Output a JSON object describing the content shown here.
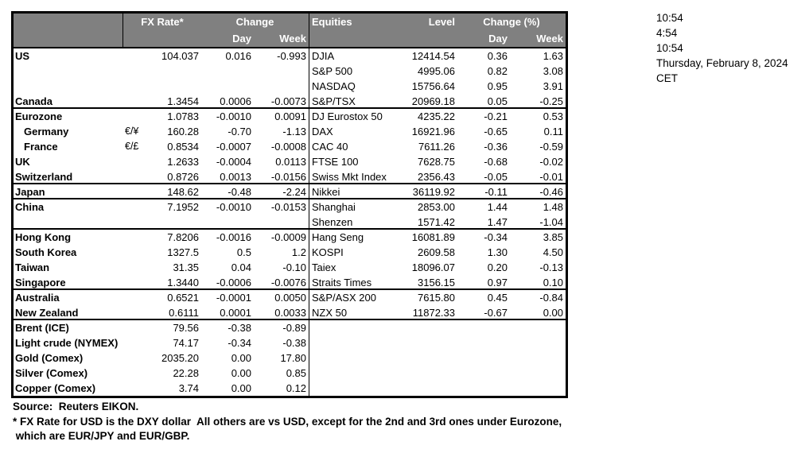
{
  "colors": {
    "header_bg": "#808080",
    "header_text": "#ffffff",
    "border": "#000000"
  },
  "header": {
    "fx_rate": "FX Rate*",
    "change": "Change",
    "day": "Day",
    "week": "Week",
    "equities": "Equities",
    "level": "Level",
    "change_pct": "Change (%)"
  },
  "rows": [
    {
      "country": "US",
      "pair": "",
      "fx_rate": "104.037",
      "fx_day": "0.016",
      "fx_week": "-0.993",
      "eq_name": "DJIA",
      "eq_level": "12414.54",
      "eq_day": "0.36",
      "eq_week": "1.63",
      "indent": false,
      "group_end": false
    },
    {
      "country": "",
      "pair": "",
      "fx_rate": "",
      "fx_day": "",
      "fx_week": "",
      "eq_name": "S&P 500",
      "eq_level": "4995.06",
      "eq_day": "0.82",
      "eq_week": "3.08",
      "indent": false,
      "group_end": false
    },
    {
      "country": "",
      "pair": "",
      "fx_rate": "",
      "fx_day": "",
      "fx_week": "",
      "eq_name": "NASDAQ",
      "eq_level": "15756.64",
      "eq_day": "0.95",
      "eq_week": "3.91",
      "indent": false,
      "group_end": false
    },
    {
      "country": "Canada",
      "pair": "",
      "fx_rate": "1.3454",
      "fx_day": "0.0006",
      "fx_week": "-0.0073",
      "eq_name": "S&P/TSX",
      "eq_level": "20969.18",
      "eq_day": "0.05",
      "eq_week": "-0.25",
      "indent": false,
      "group_end": true
    },
    {
      "country": "Eurozone",
      "pair": "",
      "fx_rate": "1.0783",
      "fx_day": "-0.0010",
      "fx_week": "0.0091",
      "eq_name": "DJ Eurostox 50",
      "eq_level": "4235.22",
      "eq_day": "-0.21",
      "eq_week": "0.53",
      "indent": false,
      "group_end": false
    },
    {
      "country": "Germany",
      "pair": "€/¥",
      "fx_rate": "160.28",
      "fx_day": "-0.70",
      "fx_week": "-1.13",
      "eq_name": "DAX",
      "eq_level": "16921.96",
      "eq_day": "-0.65",
      "eq_week": "0.11",
      "indent": true,
      "group_end": false
    },
    {
      "country": "France",
      "pair": "€/£",
      "fx_rate": "0.8534",
      "fx_day": "-0.0007",
      "fx_week": "-0.0008",
      "eq_name": "CAC 40",
      "eq_level": "7611.26",
      "eq_day": "-0.36",
      "eq_week": "-0.59",
      "indent": true,
      "group_end": false
    },
    {
      "country": "UK",
      "pair": "",
      "fx_rate": "1.2633",
      "fx_day": "-0.0004",
      "fx_week": "0.0113",
      "eq_name": "FTSE 100",
      "eq_level": "7628.75",
      "eq_day": "-0.68",
      "eq_week": "-0.02",
      "indent": false,
      "group_end": false
    },
    {
      "country": "Switzerland",
      "pair": "",
      "fx_rate": "0.8726",
      "fx_day": "0.0013",
      "fx_week": "-0.0156",
      "eq_name": "Swiss Mkt Index",
      "eq_level": "2356.43",
      "eq_day": "-0.05",
      "eq_week": "-0.01",
      "indent": false,
      "group_end": true
    },
    {
      "country": "Japan",
      "pair": "",
      "fx_rate": "148.62",
      "fx_day": "-0.48",
      "fx_week": "-2.24",
      "eq_name": "Nikkei",
      "eq_level": "36119.92",
      "eq_day": "-0.11",
      "eq_week": "-0.46",
      "indent": false,
      "group_end": true
    },
    {
      "country": "China",
      "pair": "",
      "fx_rate": "7.1952",
      "fx_day": "-0.0010",
      "fx_week": "-0.0153",
      "eq_name": "Shanghai",
      "eq_level": "2853.00",
      "eq_day": "1.44",
      "eq_week": "1.48",
      "indent": false,
      "group_end": false
    },
    {
      "country": "",
      "pair": "",
      "fx_rate": "",
      "fx_day": "",
      "fx_week": "",
      "eq_name": "Shenzen",
      "eq_level": "1571.42",
      "eq_day": "1.47",
      "eq_week": "-1.04",
      "indent": false,
      "group_end": true
    },
    {
      "country": "Hong Kong",
      "pair": "",
      "fx_rate": "7.8206",
      "fx_day": "-0.0016",
      "fx_week": "-0.0009",
      "eq_name": "Hang Seng",
      "eq_level": "16081.89",
      "eq_day": "-0.34",
      "eq_week": "3.85",
      "indent": false,
      "group_end": false
    },
    {
      "country": "South Korea",
      "pair": "",
      "fx_rate": "1327.5",
      "fx_day": "0.5",
      "fx_week": "1.2",
      "eq_name": "KOSPI",
      "eq_level": "2609.58",
      "eq_day": "1.30",
      "eq_week": "4.50",
      "indent": false,
      "group_end": false
    },
    {
      "country": "Taiwan",
      "pair": "",
      "fx_rate": "31.35",
      "fx_day": "0.04",
      "fx_week": "-0.10",
      "eq_name": "Taiex",
      "eq_level": "18096.07",
      "eq_day": "0.20",
      "eq_week": "-0.13",
      "indent": false,
      "group_end": false
    },
    {
      "country": "Singapore",
      "pair": "",
      "fx_rate": "1.3440",
      "fx_day": "-0.0006",
      "fx_week": "-0.0076",
      "eq_name": "Straits Times",
      "eq_level": "3156.15",
      "eq_day": "0.97",
      "eq_week": "0.10",
      "indent": false,
      "group_end": true
    },
    {
      "country": "Australia",
      "pair": "",
      "fx_rate": "0.6521",
      "fx_day": "-0.0001",
      "fx_week": "0.0050",
      "eq_name": "S&P/ASX  200",
      "eq_level": "7615.80",
      "eq_day": "0.45",
      "eq_week": "-0.84",
      "indent": false,
      "group_end": false
    },
    {
      "country": "New Zealand",
      "pair": "",
      "fx_rate": "0.6111",
      "fx_day": "0.0001",
      "fx_week": "0.0033",
      "eq_name": "NZX 50",
      "eq_level": "11872.33",
      "eq_day": "-0.67",
      "eq_week": "0.00",
      "indent": false,
      "group_end": true
    },
    {
      "country": "Brent (ICE)",
      "pair": "",
      "fx_rate": "79.56",
      "fx_day": "-0.38",
      "fx_week": "-0.89",
      "eq_name": "",
      "eq_level": "",
      "eq_day": "",
      "eq_week": "",
      "indent": false,
      "group_end": false
    },
    {
      "country": "Light crude (NYMEX)",
      "pair": "",
      "fx_rate": "74.17",
      "fx_day": "-0.34",
      "fx_week": "-0.38",
      "eq_name": "",
      "eq_level": "",
      "eq_day": "",
      "eq_week": "",
      "indent": false,
      "group_end": false
    },
    {
      "country": "Gold (Comex)",
      "pair": "",
      "fx_rate": "2035.20",
      "fx_day": "0.00",
      "fx_week": "17.80",
      "eq_name": "",
      "eq_level": "",
      "eq_day": "",
      "eq_week": "",
      "indent": false,
      "group_end": false
    },
    {
      "country": "Silver (Comex)",
      "pair": "",
      "fx_rate": "22.28",
      "fx_day": "0.00",
      "fx_week": "0.85",
      "eq_name": "",
      "eq_level": "",
      "eq_day": "",
      "eq_week": "",
      "indent": false,
      "group_end": false
    },
    {
      "country": "Copper (Comex)",
      "pair": "",
      "fx_rate": "3.74",
      "fx_day": "0.00",
      "fx_week": "0.12",
      "eq_name": "",
      "eq_level": "",
      "eq_day": "",
      "eq_week": "",
      "indent": false,
      "group_end": false
    }
  ],
  "footer": {
    "source": "Source:  Reuters EIKON.",
    "note_line1": "* FX Rate for USD is the DXY dollar  All others are vs USD, except for the 2nd and 3rd ones under Eurozone,",
    "note_line2": " which are EUR/JPY and EUR/GBP."
  },
  "clock": {
    "lines": [
      "10:54",
      "4:54",
      "10:54",
      "Thursday, February 8, 2024",
      "CET"
    ]
  }
}
